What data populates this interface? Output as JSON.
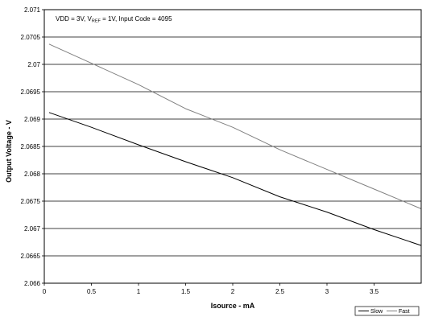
{
  "chart_data": {
    "type": "line",
    "annotation": {
      "part1": "VDD = 3V, V",
      "sub": "REF",
      "part2": " = 1V, Input Code = 4095"
    },
    "xlabel": "Isource - mA",
    "ylabel": "Output Voltage - V",
    "xlim": [
      0,
      4
    ],
    "ylim": [
      2.066,
      2.071
    ],
    "x_ticks": [
      0,
      0.5,
      1,
      1.5,
      2,
      2.5,
      3,
      3.5
    ],
    "x_tick_labels": [
      "0",
      "0.5",
      "1",
      "1.5",
      "2",
      "2.5",
      "3",
      "3.5"
    ],
    "y_ticks": [
      2.066,
      2.0665,
      2.067,
      2.0675,
      2.068,
      2.0685,
      2.069,
      2.0695,
      2.07,
      2.0705,
      2.071
    ],
    "y_tick_labels": [
      "2.066",
      "2.0665",
      "2.067",
      "2.0675",
      "2.068",
      "2.0685",
      "2.069",
      "2.0695",
      "2.07",
      "2.0705",
      "2.071"
    ],
    "grid": "horizontal",
    "legend_position": "bottom-right",
    "series": [
      {
        "name": "Slow",
        "color": "#000000",
        "x": [
          0.05,
          0.5,
          1,
          1.5,
          2,
          2.5,
          3,
          3.5,
          4
        ],
        "y": [
          2.06912,
          2.06885,
          2.06853,
          2.06822,
          2.06793,
          2.06758,
          2.0673,
          2.06698,
          2.06669
        ]
      },
      {
        "name": "Fast",
        "color": "#808080",
        "x": [
          0.05,
          0.5,
          1,
          1.5,
          2,
          2.5,
          3,
          3.5,
          4
        ],
        "y": [
          2.07037,
          2.07002,
          2.06963,
          2.06919,
          2.06885,
          2.06844,
          2.06808,
          2.06772,
          2.06736
        ]
      }
    ]
  }
}
